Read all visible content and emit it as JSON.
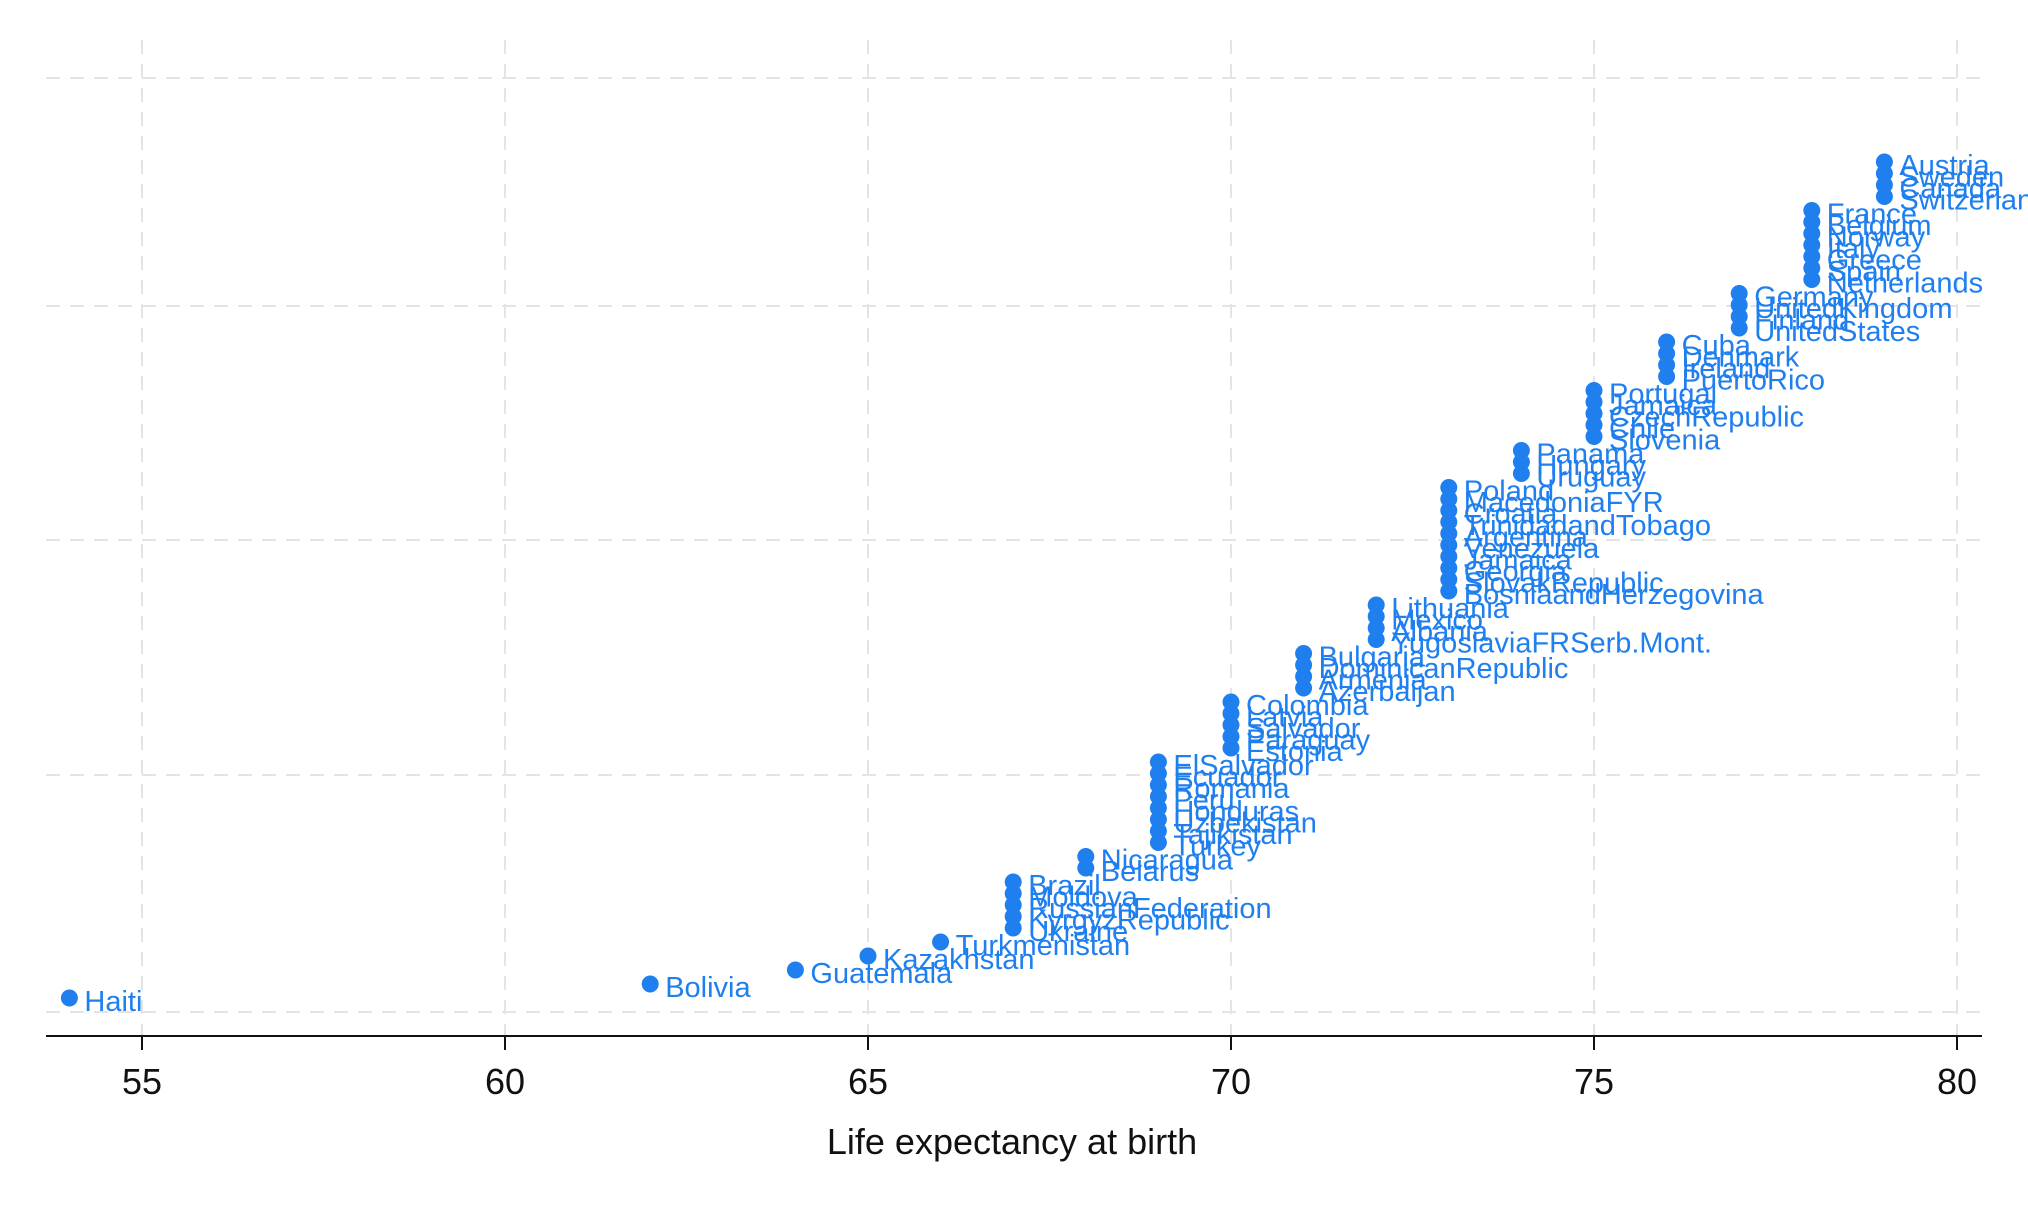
{
  "chart_data": {
    "type": "scatter",
    "title": "",
    "xlabel": "Life expectancy at birth",
    "ylabel": "",
    "xlim": [
      53.9,
      80.3
    ],
    "xticks": [
      55,
      60,
      65,
      70,
      75,
      80
    ],
    "ylim": [
      0,
      1
    ],
    "grid": true,
    "legend": "none",
    "marker_color": "#1f7fef",
    "label_color": "#1f7fef",
    "points": [
      {
        "label": "Haiti",
        "x": 54
      },
      {
        "label": "Bolivia",
        "x": 62
      },
      {
        "label": "Guatemala",
        "x": 64
      },
      {
        "label": "Kazakhstan",
        "x": 65
      },
      {
        "label": "Turkmenistan",
        "x": 66
      },
      {
        "label": "Ukraine",
        "x": 67
      },
      {
        "label": "KyrgyzRepublic",
        "x": 67
      },
      {
        "label": "RussianFederation",
        "x": 67
      },
      {
        "label": "Moldova",
        "x": 67
      },
      {
        "label": "Brazil",
        "x": 67
      },
      {
        "label": "Belarus",
        "x": 68
      },
      {
        "label": "Nicaragua",
        "x": 68
      },
      {
        "label": "Turkey",
        "x": 69
      },
      {
        "label": "Tajikistan",
        "x": 69
      },
      {
        "label": "Uzbekistan",
        "x": 69
      },
      {
        "label": "Honduras",
        "x": 69
      },
      {
        "label": "Peru",
        "x": 69
      },
      {
        "label": "Romania",
        "x": 69
      },
      {
        "label": "Ecuador",
        "x": 69
      },
      {
        "label": "ElSalvador",
        "x": 69
      },
      {
        "label": "Estonia",
        "x": 70
      },
      {
        "label": "Paraguay",
        "x": 70
      },
      {
        "label": "Salvador",
        "x": 70
      },
      {
        "label": "Latvia",
        "x": 70
      },
      {
        "label": "Colombia",
        "x": 70
      },
      {
        "label": "Azerbaijan",
        "x": 71
      },
      {
        "label": "Armenia",
        "x": 71
      },
      {
        "label": "DominicanRepublic",
        "x": 71
      },
      {
        "label": "Bulgaria",
        "x": 71
      },
      {
        "label": "YugoslaviaFRSerb.Mont.",
        "x": 72
      },
      {
        "label": "Albania",
        "x": 72
      },
      {
        "label": "Mexico",
        "x": 72
      },
      {
        "label": "Lithuania",
        "x": 72
      },
      {
        "label": "BosniaandHerzegovina",
        "x": 73
      },
      {
        "label": "SlovakRepublic",
        "x": 73
      },
      {
        "label": "Georgia",
        "x": 73
      },
      {
        "label": "Jamaica",
        "x": 73
      },
      {
        "label": "Venezuela",
        "x": 73
      },
      {
        "label": "Argentina",
        "x": 73
      },
      {
        "label": "TrinidadandTobago",
        "x": 73
      },
      {
        "label": "Croatia",
        "x": 73
      },
      {
        "label": "MacedoniaFYR",
        "x": 73
      },
      {
        "label": "Poland",
        "x": 73
      },
      {
        "label": "Uruguay",
        "x": 74
      },
      {
        "label": "Hungary",
        "x": 74
      },
      {
        "label": "Panama",
        "x": 74
      },
      {
        "label": "Slovenia",
        "x": 75
      },
      {
        "label": "Chile",
        "x": 75
      },
      {
        "label": "CzechRepublic",
        "x": 75
      },
      {
        "label": "Jamaica",
        "x": 75
      },
      {
        "label": "Portugal",
        "x": 75
      },
      {
        "label": "PuertoRico",
        "x": 76
      },
      {
        "label": "Ireland",
        "x": 76
      },
      {
        "label": "Denmark",
        "x": 76
      },
      {
        "label": "Cuba",
        "x": 76
      },
      {
        "label": "UnitedStates",
        "x": 77
      },
      {
        "label": "Finland",
        "x": 77
      },
      {
        "label": "UnitedKingdom",
        "x": 77
      },
      {
        "label": "Germany",
        "x": 77
      },
      {
        "label": "Netherlands",
        "x": 78
      },
      {
        "label": "Spain",
        "x": 78
      },
      {
        "label": "Greece",
        "x": 78
      },
      {
        "label": "Italy",
        "x": 78
      },
      {
        "label": "Norway",
        "x": 78
      },
      {
        "label": "Belgium",
        "x": 78
      },
      {
        "label": "France",
        "x": 78
      },
      {
        "label": "Switzerland",
        "x": 79
      },
      {
        "label": "Canada",
        "x": 79
      },
      {
        "label": "Sweden",
        "x": 79
      },
      {
        "label": "Austria",
        "x": 79
      }
    ]
  }
}
